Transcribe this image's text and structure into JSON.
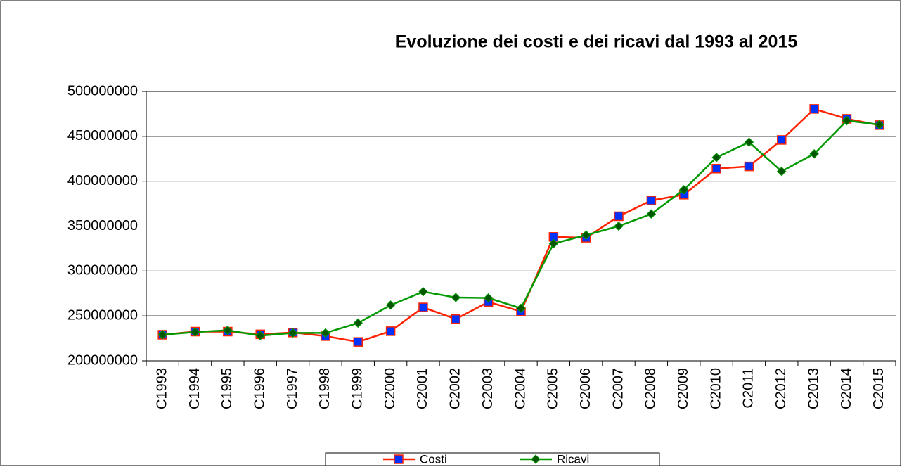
{
  "chart_data": {
    "type": "line",
    "title": "Evoluzione dei costi e dei ricavi dal 1993 al 2015",
    "categories": [
      "C1993",
      "C1994",
      "C1995",
      "C1996",
      "C1997",
      "C1998",
      "C1999",
      "C2000",
      "C2001",
      "C2002",
      "C2003",
      "C2004",
      "C2005",
      "C2006",
      "C2007",
      "C2008",
      "C2009",
      "C2010",
      "C2011",
      "C2012",
      "C2013",
      "C2014",
      "C2015"
    ],
    "series": [
      {
        "name": "Costi",
        "color": "#ff2200",
        "marker_color": "#0033ff",
        "marker": "square",
        "values": [
          229000000,
          232500000,
          232500000,
          229500000,
          231500000,
          227500000,
          221000000,
          233000000,
          259500000,
          246500000,
          265500000,
          255000000,
          338000000,
          337000000,
          361000000,
          378500000,
          385000000,
          414000000,
          416500000,
          446000000,
          480500000,
          469500000,
          462500000
        ]
      },
      {
        "name": "Ricavi",
        "color": "#009900",
        "marker_color": "#005500",
        "marker": "diamond",
        "values": [
          229000000,
          232000000,
          234000000,
          228000000,
          231000000,
          231000000,
          242000000,
          262000000,
          277000000,
          270500000,
          270000000,
          258500000,
          330500000,
          340000000,
          350000000,
          363500000,
          390500000,
          426500000,
          443500000,
          411000000,
          430500000,
          467500000,
          463000000
        ]
      }
    ],
    "ylim": [
      200000000,
      500000000
    ],
    "yticks": [
      200000000,
      250000000,
      300000000,
      350000000,
      400000000,
      450000000,
      500000000
    ],
    "grid": true
  }
}
